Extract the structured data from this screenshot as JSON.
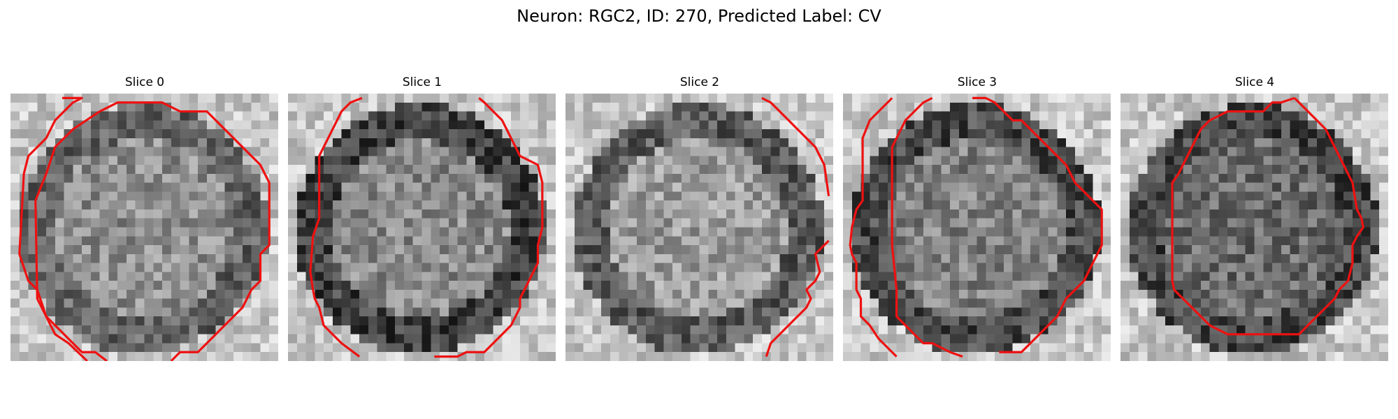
{
  "figure": {
    "title": "Neuron: RGC2, ID: 270, Predicted Label: CV"
  },
  "slices": [
    {
      "label": "Slice 0",
      "seed": 11,
      "ring_dark": 0.45,
      "center_light": 0.6
    },
    {
      "label": "Slice 1",
      "seed": 23,
      "ring_dark": 0.85,
      "center_light": 0.55
    },
    {
      "label": "Slice 2",
      "seed": 37,
      "ring_dark": 0.55,
      "center_light": 0.75
    },
    {
      "label": "Slice 3",
      "seed": 51,
      "ring_dark": 0.75,
      "center_light": 0.45
    },
    {
      "label": "Slice 4",
      "seed": 67,
      "ring_dark": 0.8,
      "center_light": 0.2
    }
  ],
  "colors": {
    "contour": "#ee1111"
  }
}
